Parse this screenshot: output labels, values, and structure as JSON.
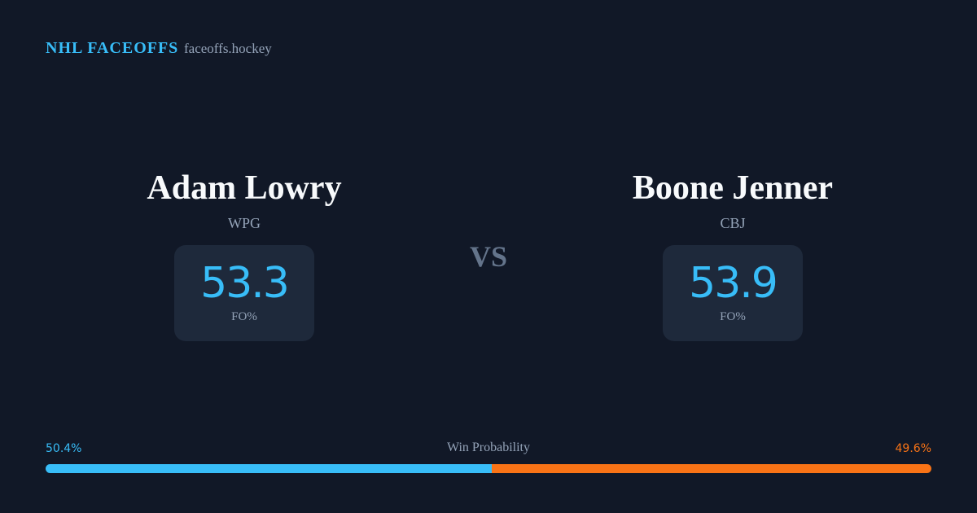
{
  "header": {
    "brand": "NHL FACEOFFS",
    "site": "faceoffs.hockey"
  },
  "players": [
    {
      "name": "Adam Lowry",
      "team": "WPG",
      "fo_pct": 53.3,
      "fo_label": "FO%"
    },
    {
      "name": "Boone Jenner",
      "team": "CBJ",
      "fo_pct": 53.9,
      "fo_label": "FO%"
    }
  ],
  "vs": "VS",
  "win_probability": {
    "label": "Win Probability",
    "values": [
      {
        "value": 50.4,
        "label": "50.4%"
      },
      {
        "value": 49.6,
        "label": "49.6%"
      }
    ],
    "colors": [
      "#38bdf8",
      "#f97316"
    ]
  }
}
